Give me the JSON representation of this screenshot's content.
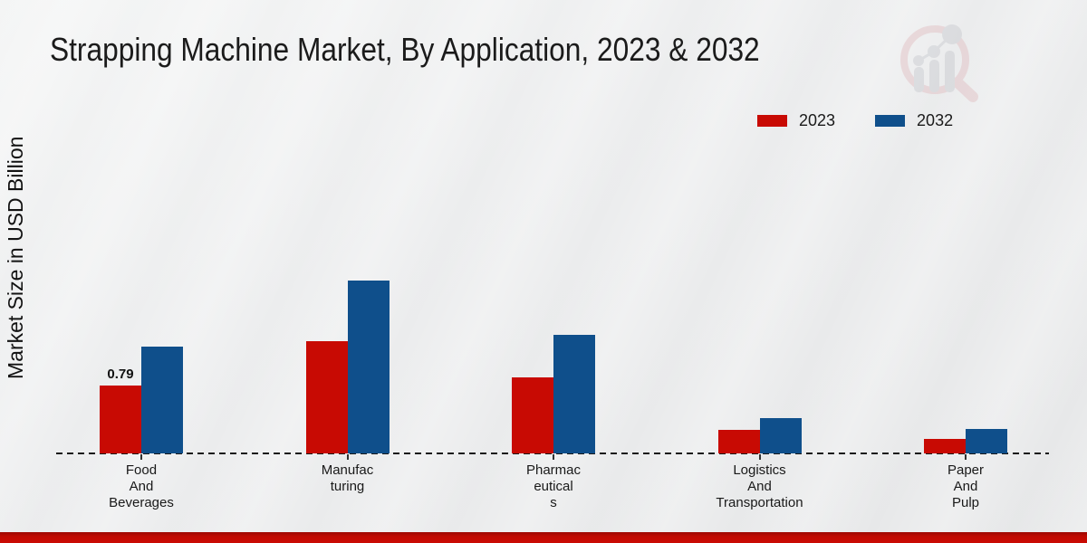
{
  "chart_data": {
    "type": "bar",
    "title": "Strapping Machine Market, By Application, 2023 & 2032",
    "ylabel": "Market Size in USD Billion",
    "xlabel": "",
    "categories": [
      "Food And Beverages",
      "Manufacturing",
      "Pharmaceuticals",
      "Logistics And Transportation",
      "Paper And Pulp"
    ],
    "category_tick_lines": [
      [
        "Food",
        "And",
        "Beverages"
      ],
      [
        "Manufac",
        "turing"
      ],
      [
        "Pharmac",
        "eutical",
        "s"
      ],
      [
        "Logistics",
        "And",
        "Transportation"
      ],
      [
        "Paper",
        "And",
        "Pulp"
      ]
    ],
    "series": [
      {
        "name": "2023",
        "color": "#c80a03",
        "values": [
          0.79,
          1.31,
          0.89,
          0.27,
          0.17
        ]
      },
      {
        "name": "2032",
        "color": "#0f4f8b",
        "values": [
          1.25,
          2.02,
          1.38,
          0.41,
          0.29
        ]
      }
    ],
    "annotations": [
      {
        "category_index": 0,
        "series_index": 0,
        "text": "0.79"
      }
    ],
    "ylim": [
      0,
      2.3
    ],
    "grid": false,
    "legend_position": "top-right",
    "baseline_style": "dashed"
  },
  "colors": {
    "background": "#eaebec",
    "title_text": "#1b1b1b",
    "axis_text": "#191919",
    "footer_accent": "#c00a02",
    "watermark_ring": "#dfb6ba",
    "watermark_chart": "#c9cbd1"
  },
  "branding": {
    "watermark": "magnifier-with-bar-chart-watermark"
  }
}
